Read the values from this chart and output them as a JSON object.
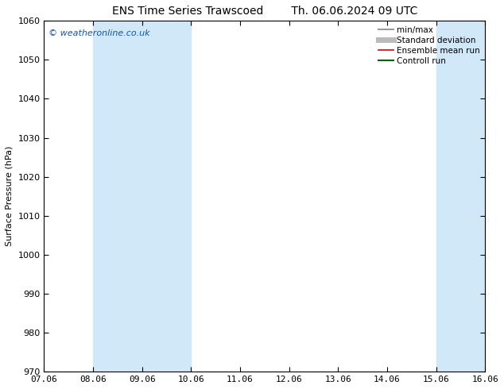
{
  "title": "ENS Time Series Trawscoed",
  "title_right": "Th. 06.06.2024 09 UTC",
  "ylabel": "Surface Pressure (hPa)",
  "ylim": [
    970,
    1060
  ],
  "yticks": [
    970,
    980,
    990,
    1000,
    1010,
    1020,
    1030,
    1040,
    1050,
    1060
  ],
  "xlabels": [
    "07.06",
    "08.06",
    "09.06",
    "10.06",
    "11.06",
    "12.06",
    "13.06",
    "14.06",
    "15.06",
    "16.06"
  ],
  "x_values": [
    0,
    1,
    2,
    3,
    4,
    5,
    6,
    7,
    8,
    9
  ],
  "shaded_bands": [
    {
      "xmin": 1,
      "xmax": 3,
      "color": "#d0e8f8"
    },
    {
      "xmin": 8,
      "xmax": 9,
      "color": "#d0e8f8"
    }
  ],
  "legend_entries": [
    {
      "label": "min/max",
      "color": "#999999",
      "lw": 1.5
    },
    {
      "label": "Standard deviation",
      "color": "#bbbbbb",
      "lw": 5
    },
    {
      "label": "Ensemble mean run",
      "color": "#dd0000",
      "lw": 1.2
    },
    {
      "label": "Controll run",
      "color": "#006600",
      "lw": 1.5
    }
  ],
  "watermark": "© weatheronline.co.uk",
  "watermark_color": "#1155aa",
  "background_color": "#ffffff",
  "plot_bg_color": "#ffffff",
  "title_fontsize": 10,
  "axis_fontsize": 8,
  "tick_fontsize": 8,
  "legend_fontsize": 7.5
}
